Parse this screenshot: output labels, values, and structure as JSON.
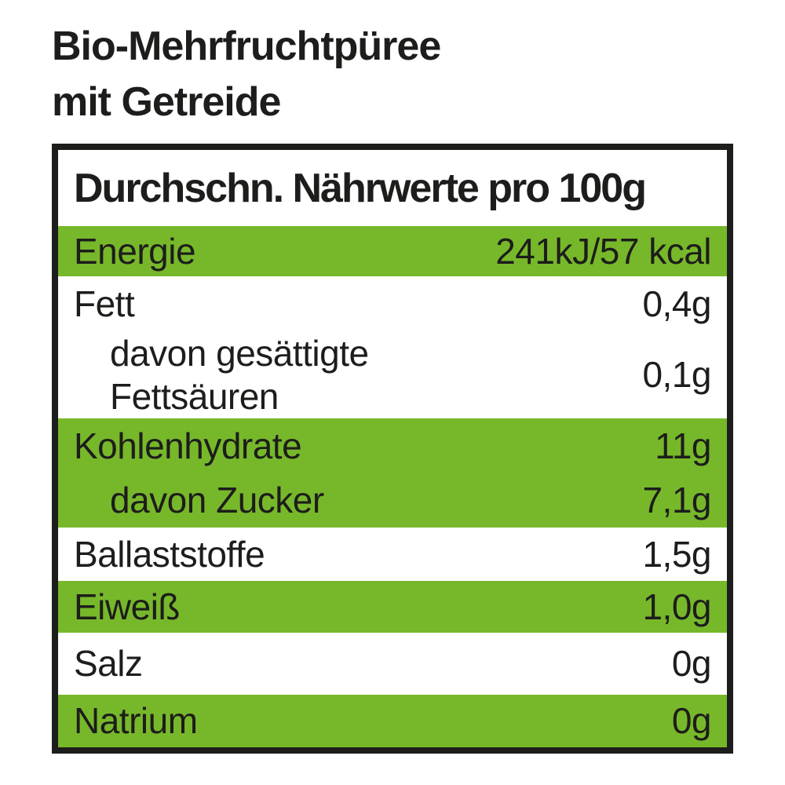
{
  "title": {
    "line1": "Bio-Mehrfruchtpüree",
    "line2": "mit Getreide"
  },
  "table": {
    "header": "Durchschn. Nährwerte pro 100g",
    "rows": [
      {
        "label": "Energie",
        "value": "241kJ/57 kcal",
        "highlighted": true,
        "indented": false
      },
      {
        "label": "Fett",
        "value": "0,4g",
        "highlighted": false,
        "indented": false
      },
      {
        "label": "davon gesättigte Fettsäuren",
        "value": "0,1g",
        "highlighted": false,
        "indented": true
      },
      {
        "label": "Kohlenhydrate",
        "value": "11g",
        "highlighted": true,
        "indented": false
      },
      {
        "label": "davon Zucker",
        "value": "7,1g",
        "highlighted": true,
        "indented": true
      },
      {
        "label": "Ballaststoffe",
        "value": "1,5g",
        "highlighted": false,
        "indented": false
      },
      {
        "label": "Eiweiß",
        "value": "1,0g",
        "highlighted": true,
        "indented": false
      },
      {
        "label": "Salz",
        "value": "0g",
        "highlighted": false,
        "indented": false
      },
      {
        "label": "Natrium",
        "value": "0g",
        "highlighted": true,
        "indented": false
      }
    ]
  },
  "colors": {
    "highlight_green": "#77b82b",
    "text_black": "#1d1d1b",
    "border_black": "#1d1d1b",
    "background": "#ffffff"
  }
}
